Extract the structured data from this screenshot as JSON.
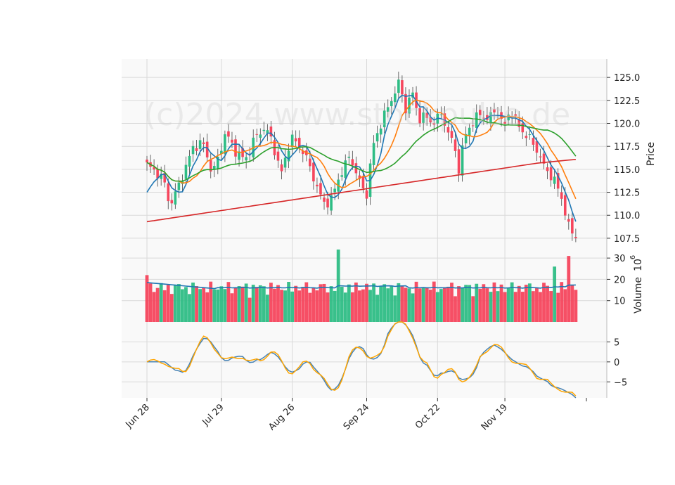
{
  "watermark": "(c)2024 www.stockpulse.de",
  "chart_data": [
    {
      "panel": "price",
      "type": "candlestick",
      "ylabel": "Price",
      "ylim": [
        106.5,
        127
      ],
      "yticks": [
        "107.5",
        "110.0",
        "112.5",
        "115.0",
        "117.5",
        "120.0",
        "122.5",
        "125.0"
      ],
      "x_tick_labels": [
        "Jun 28",
        "Jul 29",
        "Aug 26",
        "Sep 24",
        "Oct 22",
        "Nov 19"
      ],
      "x_tick_index": [
        0,
        21,
        41,
        62,
        82,
        101
      ],
      "bars": 122,
      "series_colors": [
        "#1f77b4",
        "#ff7f0e",
        "#2ca02c",
        "#d62728"
      ],
      "up_color": "#2ebd85",
      "down_color": "#f6465d",
      "grid": true
    },
    {
      "panel": "volume",
      "type": "bar",
      "ylabel": "Volume",
      "scale_label": "10",
      "scale_exponent": "6",
      "ylim": [
        0,
        35
      ],
      "yticks": [
        "10",
        "20",
        "30"
      ],
      "avg_color": "#1f77b4",
      "grid": true
    },
    {
      "panel": "oscillator",
      "type": "line",
      "ylim": [
        -9,
        10
      ],
      "yticks": [
        "5",
        "0",
        "−5"
      ],
      "series_colors": [
        "#4682b4",
        "#ffa500"
      ],
      "grid": true
    }
  ]
}
